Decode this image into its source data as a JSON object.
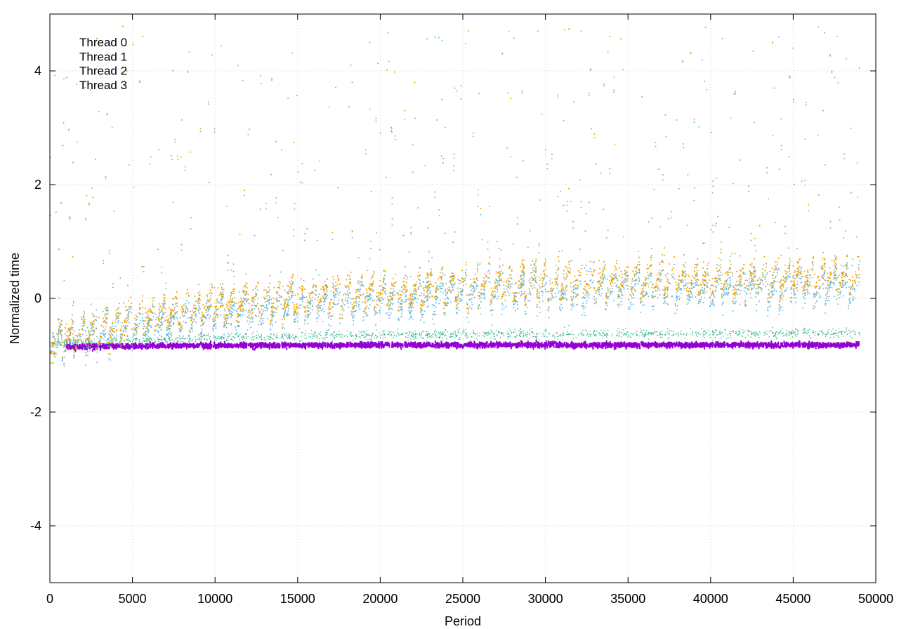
{
  "chart_data": {
    "type": "scatter",
    "title": "",
    "xlabel": "Period",
    "ylabel": "Normalized time",
    "xlim": [
      0,
      50000
    ],
    "ylim": [
      -5,
      5
    ],
    "xticks": [
      0,
      5000,
      10000,
      15000,
      20000,
      25000,
      30000,
      35000,
      40000,
      45000,
      50000
    ],
    "xtick_labels": [
      "0",
      "5000",
      "10000",
      "15000",
      "20000",
      "25000",
      "30000",
      "35000",
      "40000",
      "45000",
      "50000"
    ],
    "yticks": [
      4,
      2,
      0,
      -2,
      -4
    ],
    "ytick_labels": [
      "4",
      "2",
      "0",
      "-2",
      "-4"
    ],
    "grid": true,
    "legend_position": "top-left",
    "series": [
      {
        "name": "Thread 0",
        "color": "#9400d3",
        "x": [
          0,
          5000,
          10000,
          15000,
          20000,
          25000,
          30000,
          35000,
          40000,
          45000,
          49000
        ],
        "y": [
          -0.85,
          -0.84,
          -0.83,
          -0.83,
          -0.82,
          -0.82,
          -0.82,
          -0.82,
          -0.82,
          -0.82,
          -0.82
        ]
      },
      {
        "name": "Thread 1",
        "color": "#009e73",
        "x": [
          0,
          5000,
          10000,
          15000,
          20000,
          25000,
          30000,
          35000,
          40000,
          45000,
          49000
        ],
        "y": [
          -0.8,
          -0.72,
          -0.68,
          -0.66,
          -0.64,
          -0.63,
          -0.62,
          -0.62,
          -0.61,
          -0.6,
          -0.6
        ]
      },
      {
        "name": "Thread 2",
        "color": "#56b4e9",
        "x": [
          0,
          5000,
          10000,
          15000,
          20000,
          25000,
          30000,
          35000,
          40000,
          45000,
          49000
        ],
        "y": [
          -0.8,
          -0.5,
          -0.3,
          -0.15,
          -0.05,
          0.05,
          0.1,
          0.15,
          0.15,
          0.2,
          0.2
        ]
      },
      {
        "name": "Thread 3",
        "color": "#e69f00",
        "x": [
          0,
          5000,
          10000,
          15000,
          20000,
          25000,
          30000,
          35000,
          40000,
          45000,
          49000
        ],
        "y": [
          -0.8,
          -0.4,
          -0.15,
          0.0,
          0.1,
          0.2,
          0.25,
          0.3,
          0.3,
          0.35,
          0.35
        ]
      }
    ]
  }
}
